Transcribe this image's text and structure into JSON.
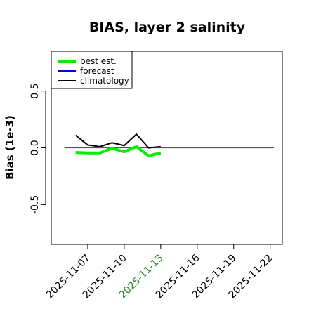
{
  "chart_data": {
    "type": "line",
    "title": "BIAS, layer 2 salinity",
    "xlabel": "",
    "ylabel": "Bias (1e-3)",
    "xlim": [
      "2025-11-04",
      "2025-11-23"
    ],
    "ylim": [
      -0.85,
      0.85
    ],
    "y_ticks": [
      -0.5,
      0.0,
      0.5
    ],
    "y_tick_labels": [
      "-0.5",
      "0.0",
      "0.5"
    ],
    "x_ticks": [
      "2025-11-07",
      "2025-11-10",
      "2025-11-13",
      "2025-11-16",
      "2025-11-19",
      "2025-11-22"
    ],
    "x_tick_labels": [
      "2025-11-07",
      "2025-11-10",
      "2025-11-13",
      "2025-11-16",
      "2025-11-19",
      "2025-11-22"
    ],
    "highlighted_tick": "2025-11-13",
    "highlight_color": "#228B22",
    "reference_line": 0.0,
    "grid": false,
    "legend_position": "top-left",
    "series": [
      {
        "name": "best est.",
        "color": "#00ee00",
        "x": [
          "2025-11-06",
          "2025-11-07",
          "2025-11-08",
          "2025-11-09",
          "2025-11-10",
          "2025-11-11",
          "2025-11-12",
          "2025-11-13"
        ],
        "values": [
          -0.04,
          -0.045,
          -0.045,
          -0.005,
          -0.035,
          0.01,
          -0.07,
          -0.045
        ]
      },
      {
        "name": "forecast",
        "color": "#0000ee",
        "x": [],
        "values": []
      },
      {
        "name": "climatology",
        "color": "#000000",
        "x": [
          "2025-11-06",
          "2025-11-07",
          "2025-11-08",
          "2025-11-09",
          "2025-11-10",
          "2025-11-11",
          "2025-11-12",
          "2025-11-13"
        ],
        "values": [
          0.11,
          0.025,
          0.01,
          0.045,
          0.02,
          0.12,
          0.0,
          0.01
        ]
      }
    ]
  }
}
